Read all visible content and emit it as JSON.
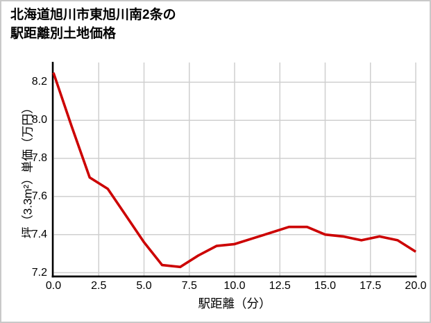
{
  "title": {
    "line1": "北海道旭川市東旭川南2条の",
    "line2": "駅距離別土地価格"
  },
  "chart_data": {
    "type": "line",
    "title": "北海道旭川市東旭川南2条の駅距離別土地価格",
    "xlabel": "駅距離（分）",
    "ylabel": "坪（3.3m²）単価（万円）",
    "x": [
      0,
      1,
      2,
      3,
      4,
      5,
      6,
      7,
      8,
      9,
      10,
      11,
      12,
      13,
      14,
      15,
      16,
      17,
      18,
      19,
      20
    ],
    "y": [
      8.25,
      7.97,
      7.7,
      7.64,
      7.5,
      7.36,
      7.24,
      7.23,
      7.29,
      7.34,
      7.35,
      7.38,
      7.41,
      7.44,
      7.44,
      7.4,
      7.39,
      7.37,
      7.39,
      7.37,
      7.31
    ],
    "series_name": "駅距離別土地価格",
    "xticks": [
      0,
      2.5,
      5,
      7.5,
      10,
      12.5,
      15,
      17.5,
      20
    ],
    "xtick_labels": [
      "0.0",
      "2.5",
      "5.0",
      "7.5",
      "10.0",
      "12.5",
      "15.0",
      "17.5",
      "20.0"
    ],
    "yticks": [
      7.2,
      7.4,
      7.6,
      7.8,
      8.0,
      8.2
    ],
    "ytick_labels": [
      "7.2",
      "7.4",
      "7.6",
      "7.8",
      "8.0",
      "8.2"
    ],
    "xlim": [
      0,
      20
    ],
    "ylim": [
      7.18,
      8.3
    ],
    "grid": true,
    "legend": "none",
    "line_color": "#cc0000",
    "line_width": 3.6,
    "grid_color": "#cfcfcf",
    "axis_color": "#000000",
    "text_color": "#000000",
    "background": "#ffffff",
    "frame_border_color": "#c9c9c9"
  }
}
